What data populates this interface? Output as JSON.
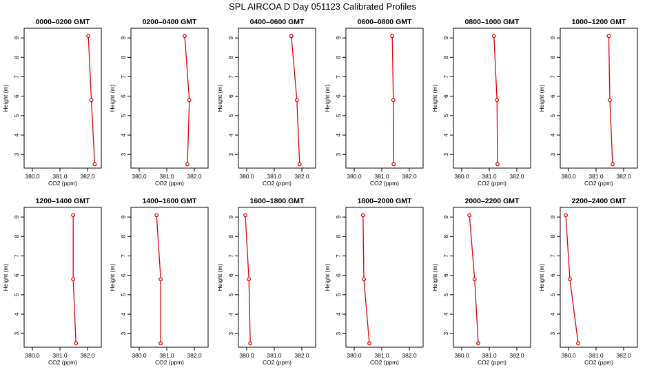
{
  "figure_title": "SPL AIRCOA D  Day 051123  Calibrated Profiles",
  "chart_data": [
    {
      "type": "line",
      "title": "0000–0200 GMT",
      "xlabel": "CO2 (ppm)",
      "ylabel": "Height (m)",
      "xlim": [
        379.7,
        382.5
      ],
      "ylim": [
        2.3,
        9.5
      ],
      "xticks": [
        380.0,
        381.0,
        382.0
      ],
      "yticks": [
        3,
        4,
        5,
        6,
        7,
        8,
        9
      ],
      "color": "#e00000",
      "x": [
        382.26,
        382.14,
        382.03
      ],
      "y": [
        2.5,
        5.8,
        9.1
      ]
    },
    {
      "type": "line",
      "title": "0200–0400 GMT",
      "xlabel": "CO2 (ppm)",
      "ylabel": "Height (m)",
      "xlim": [
        379.7,
        382.5
      ],
      "ylim": [
        2.3,
        9.5
      ],
      "xticks": [
        380.0,
        381.0,
        382.0
      ],
      "yticks": [
        3,
        4,
        5,
        6,
        7,
        8,
        9
      ],
      "color": "#e00000",
      "x": [
        381.75,
        381.82,
        381.65
      ],
      "y": [
        2.5,
        5.8,
        9.1
      ]
    },
    {
      "type": "line",
      "title": "0400–0600 GMT",
      "xlabel": "CO2 (ppm)",
      "ylabel": "Height (m)",
      "xlim": [
        379.7,
        382.5
      ],
      "ylim": [
        2.3,
        9.5
      ],
      "xticks": [
        380.0,
        381.0,
        382.0
      ],
      "yticks": [
        3,
        4,
        5,
        6,
        7,
        8,
        9
      ],
      "color": "#e00000",
      "x": [
        381.92,
        381.82,
        381.62
      ],
      "y": [
        2.5,
        5.8,
        9.1
      ]
    },
    {
      "type": "line",
      "title": "0600–0800 GMT",
      "xlabel": "CO2 (ppm)",
      "ylabel": "Height (m)",
      "xlim": [
        379.7,
        382.5
      ],
      "ylim": [
        2.3,
        9.5
      ],
      "xticks": [
        380.0,
        381.0,
        382.0
      ],
      "yticks": [
        3,
        4,
        5,
        6,
        7,
        8,
        9
      ],
      "color": "#e00000",
      "x": [
        381.43,
        381.42,
        381.38
      ],
      "y": [
        2.5,
        5.8,
        9.1
      ]
    },
    {
      "type": "line",
      "title": "0800–1000 GMT",
      "xlabel": "CO2 (ppm)",
      "ylabel": "Height (m)",
      "xlim": [
        379.7,
        382.5
      ],
      "ylim": [
        2.3,
        9.5
      ],
      "xticks": [
        380.0,
        381.0,
        382.0
      ],
      "yticks": [
        3,
        4,
        5,
        6,
        7,
        8,
        9
      ],
      "color": "#e00000",
      "x": [
        381.3,
        381.28,
        381.17
      ],
      "y": [
        2.5,
        5.8,
        9.1
      ]
    },
    {
      "type": "line",
      "title": "1000–1200 GMT",
      "xlabel": "CO2 (ppm)",
      "ylabel": "Height (m)",
      "xlim": [
        379.7,
        382.5
      ],
      "ylim": [
        2.3,
        9.5
      ],
      "xticks": [
        380.0,
        381.0,
        382.0
      ],
      "yticks": [
        3,
        4,
        5,
        6,
        7,
        8,
        9
      ],
      "color": "#e00000",
      "x": [
        381.6,
        381.5,
        381.46
      ],
      "y": [
        2.5,
        5.8,
        9.1
      ]
    },
    {
      "type": "line",
      "title": "1200–1400 GMT",
      "xlabel": "CO2 (ppm)",
      "ylabel": "Height (m)",
      "xlim": [
        379.7,
        382.5
      ],
      "ylim": [
        2.3,
        9.5
      ],
      "xticks": [
        380.0,
        381.0,
        382.0
      ],
      "yticks": [
        3,
        4,
        5,
        6,
        7,
        8,
        9
      ],
      "color": "#e00000",
      "x": [
        381.58,
        381.48,
        381.48
      ],
      "y": [
        2.5,
        5.8,
        9.1
      ]
    },
    {
      "type": "line",
      "title": "1400–1600 GMT",
      "xlabel": "CO2 (ppm)",
      "ylabel": "Height (m)",
      "xlim": [
        379.7,
        382.5
      ],
      "ylim": [
        2.3,
        9.5
      ],
      "xticks": [
        380.0,
        381.0,
        382.0
      ],
      "yticks": [
        3,
        4,
        5,
        6,
        7,
        8,
        9
      ],
      "color": "#e00000",
      "x": [
        380.78,
        380.78,
        380.63
      ],
      "y": [
        2.5,
        5.8,
        9.1
      ]
    },
    {
      "type": "line",
      "title": "1600–1800 GMT",
      "xlabel": "CO2 (ppm)",
      "ylabel": "Height (m)",
      "xlim": [
        379.7,
        382.5
      ],
      "ylim": [
        2.3,
        9.5
      ],
      "xticks": [
        380.0,
        381.0,
        382.0
      ],
      "yticks": [
        3,
        4,
        5,
        6,
        7,
        8,
        9
      ],
      "color": "#e00000",
      "x": [
        380.13,
        380.08,
        379.95
      ],
      "y": [
        2.5,
        5.8,
        9.1
      ]
    },
    {
      "type": "line",
      "title": "1800–2000 GMT",
      "xlabel": "CO2 (ppm)",
      "ylabel": "Height (m)",
      "xlim": [
        379.7,
        382.5
      ],
      "ylim": [
        2.3,
        9.5
      ],
      "xticks": [
        380.0,
        381.0,
        382.0
      ],
      "yticks": [
        3,
        4,
        5,
        6,
        7,
        8,
        9
      ],
      "color": "#e00000",
      "x": [
        380.55,
        380.35,
        380.32
      ],
      "y": [
        2.5,
        5.8,
        9.1
      ]
    },
    {
      "type": "line",
      "title": "2000–2200 GMT",
      "xlabel": "CO2 (ppm)",
      "ylabel": "Height (m)",
      "xlim": [
        379.7,
        382.5
      ],
      "ylim": [
        2.3,
        9.5
      ],
      "xticks": [
        380.0,
        381.0,
        382.0
      ],
      "yticks": [
        3,
        4,
        5,
        6,
        7,
        8,
        9
      ],
      "color": "#e00000",
      "x": [
        380.6,
        380.47,
        380.28
      ],
      "y": [
        2.5,
        5.8,
        9.1
      ]
    },
    {
      "type": "line",
      "title": "2200–2400 GMT",
      "xlabel": "CO2 (ppm)",
      "ylabel": "Height (m)",
      "xlim": [
        379.7,
        382.5
      ],
      "ylim": [
        2.3,
        9.5
      ],
      "xticks": [
        380.0,
        381.0,
        382.0
      ],
      "yticks": [
        3,
        4,
        5,
        6,
        7,
        8,
        9
      ],
      "color": "#e00000",
      "x": [
        380.35,
        380.05,
        379.9
      ],
      "y": [
        2.5,
        5.8,
        9.1
      ]
    }
  ]
}
